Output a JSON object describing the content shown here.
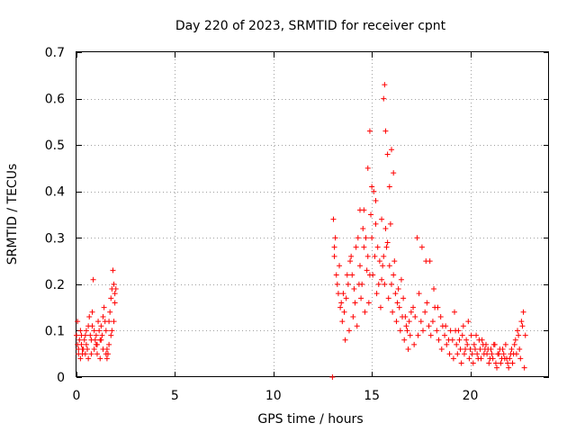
{
  "chart_data": {
    "type": "scatter",
    "title": "Day 220 of 2023, SRMTID for receiver cpnt",
    "xlabel": "GPS time / hours",
    "ylabel": "SRMTID / TECUs",
    "xlim": [
      0,
      24
    ],
    "ylim": [
      0,
      0.7
    ],
    "xticks": [
      0,
      5,
      10,
      15,
      20
    ],
    "xtick_labels": [
      "0",
      "5",
      "10",
      "15",
      "20"
    ],
    "yticks": [
      0,
      0.1,
      0.2,
      0.3,
      0.4,
      0.5,
      0.6,
      0.7
    ],
    "ytick_labels": [
      "0",
      "0.1",
      "0.2",
      "0.3",
      "0.4",
      "0.5",
      "0.6",
      "0.7"
    ],
    "grid": true,
    "marker": "+",
    "color": "#ff0000",
    "series": [
      {
        "name": "SRMTID",
        "x": [
          0.0,
          0.05,
          0.1,
          0.15,
          0.2,
          0.25,
          0.3,
          0.35,
          0.4,
          0.45,
          0.5,
          0.55,
          0.6,
          0.65,
          0.7,
          0.75,
          0.8,
          0.85,
          0.9,
          0.95,
          1.0,
          1.05,
          1.1,
          1.15,
          1.2,
          1.25,
          1.3,
          1.35,
          1.4,
          1.45,
          1.5,
          1.55,
          1.6,
          1.65,
          1.7,
          1.75,
          1.8,
          1.85,
          1.9,
          1.95,
          2.0,
          0.1,
          0.2,
          0.3,
          0.45,
          0.6,
          0.75,
          0.9,
          1.05,
          1.2,
          1.35,
          1.5,
          1.65,
          1.8,
          1.95,
          0.05,
          0.25,
          0.5,
          0.8,
          1.0,
          1.25,
          1.55,
          1.75,
          1.9,
          13.0,
          13.05,
          13.1,
          13.2,
          13.3,
          13.4,
          13.5,
          13.6,
          13.7,
          13.8,
          13.9,
          14.0,
          14.1,
          14.2,
          14.3,
          14.4,
          14.5,
          14.6,
          14.7,
          14.8,
          14.9,
          15.0,
          15.1,
          15.2,
          15.3,
          15.4,
          15.5,
          15.6,
          15.7,
          15.8,
          15.9,
          16.0,
          16.1,
          16.2,
          16.3,
          16.4,
          16.5,
          16.6,
          16.7,
          16.8,
          16.9,
          17.0,
          13.1,
          13.25,
          13.45,
          13.65,
          13.85,
          14.05,
          14.25,
          14.45,
          14.65,
          14.85,
          15.05,
          15.25,
          15.45,
          15.65,
          15.85,
          16.05,
          16.25,
          16.45,
          16.65,
          16.85,
          13.15,
          13.35,
          13.55,
          13.75,
          13.95,
          14.15,
          14.35,
          14.55,
          14.75,
          14.95,
          15.15,
          15.35,
          15.55,
          15.75,
          15.95,
          16.15,
          16.35,
          16.55,
          16.75,
          16.95,
          14.4,
          14.6,
          14.8,
          14.9,
          15.0,
          15.2,
          15.5,
          15.6,
          15.65,
          15.7,
          15.8,
          15.9,
          16.0,
          16.1,
          17.1,
          17.2,
          17.3,
          17.4,
          17.5,
          17.6,
          17.7,
          17.8,
          17.9,
          18.0,
          18.1,
          18.2,
          18.3,
          18.4,
          18.5,
          18.6,
          18.7,
          18.8,
          18.9,
          19.0,
          17.15,
          17.35,
          17.55,
          17.75,
          17.95,
          18.15,
          18.35,
          18.55,
          18.75,
          18.95,
          19.1,
          19.2,
          19.3,
          19.4,
          19.5,
          19.6,
          19.7,
          19.8,
          19.9,
          20.0,
          20.1,
          20.2,
          20.3,
          20.4,
          20.5,
          20.6,
          20.7,
          20.8,
          20.9,
          21.0,
          21.1,
          21.2,
          21.3,
          21.4,
          21.5,
          21.6,
          21.7,
          21.8,
          21.9,
          22.0,
          22.1,
          22.2,
          22.3,
          22.4,
          22.5,
          22.6,
          22.7,
          22.8,
          19.15,
          19.35,
          19.55,
          19.75,
          19.95,
          20.15,
          20.35,
          20.55,
          20.75,
          20.95,
          21.15,
          21.35,
          21.55,
          21.75,
          21.95,
          22.15,
          22.35,
          22.55,
          22.75,
          19.25,
          19.45,
          19.65,
          19.85,
          20.05,
          20.25,
          20.45,
          20.65,
          20.85,
          21.05,
          21.25,
          21.45,
          21.65,
          21.85,
          22.05,
          22.25,
          22.45,
          22.65
        ],
        "y": [
          0.09,
          0.07,
          0.06,
          0.08,
          0.1,
          0.07,
          0.05,
          0.06,
          0.08,
          0.09,
          0.07,
          0.06,
          0.11,
          0.13,
          0.09,
          0.08,
          0.14,
          0.21,
          0.1,
          0.08,
          0.09,
          0.07,
          0.12,
          0.1,
          0.08,
          0.11,
          0.09,
          0.13,
          0.15,
          0.12,
          0.1,
          0.06,
          0.05,
          0.12,
          0.14,
          0.17,
          0.19,
          0.23,
          0.2,
          0.18,
          0.19,
          0.05,
          0.04,
          0.06,
          0.05,
          0.04,
          0.05,
          0.06,
          0.05,
          0.04,
          0.06,
          0.05,
          0.07,
          0.1,
          0.16,
          0.12,
          0.09,
          0.1,
          0.11,
          0.07,
          0.08,
          0.04,
          0.09,
          0.12,
          0.0,
          0.34,
          0.28,
          0.22,
          0.18,
          0.15,
          0.12,
          0.14,
          0.17,
          0.2,
          0.25,
          0.22,
          0.19,
          0.28,
          0.3,
          0.24,
          0.2,
          0.36,
          0.3,
          0.26,
          0.22,
          0.3,
          0.4,
          0.33,
          0.28,
          0.25,
          0.21,
          0.26,
          0.32,
          0.29,
          0.24,
          0.2,
          0.22,
          0.18,
          0.16,
          0.15,
          0.21,
          0.17,
          0.13,
          0.1,
          0.12,
          0.14,
          0.26,
          0.2,
          0.16,
          0.08,
          0.1,
          0.13,
          0.11,
          0.17,
          0.14,
          0.16,
          0.22,
          0.18,
          0.15,
          0.2,
          0.17,
          0.14,
          0.12,
          0.1,
          0.08,
          0.06,
          0.3,
          0.24,
          0.18,
          0.22,
          0.26,
          0.16,
          0.2,
          0.32,
          0.23,
          0.35,
          0.26,
          0.2,
          0.24,
          0.28,
          0.33,
          0.25,
          0.19,
          0.13,
          0.11,
          0.09,
          0.36,
          0.28,
          0.45,
          0.53,
          0.41,
          0.38,
          0.34,
          0.6,
          0.63,
          0.53,
          0.48,
          0.41,
          0.49,
          0.44,
          0.15,
          0.13,
          0.3,
          0.18,
          0.12,
          0.1,
          0.14,
          0.16,
          0.11,
          0.09,
          0.12,
          0.15,
          0.1,
          0.08,
          0.13,
          0.11,
          0.09,
          0.07,
          0.08,
          0.1,
          0.07,
          0.09,
          0.28,
          0.25,
          0.25,
          0.19,
          0.15,
          0.06,
          0.11,
          0.05,
          0.08,
          0.14,
          0.07,
          0.1,
          0.06,
          0.09,
          0.05,
          0.08,
          0.12,
          0.06,
          0.05,
          0.07,
          0.09,
          0.04,
          0.06,
          0.08,
          0.05,
          0.07,
          0.06,
          0.04,
          0.05,
          0.07,
          0.03,
          0.05,
          0.06,
          0.04,
          0.05,
          0.07,
          0.03,
          0.04,
          0.06,
          0.05,
          0.08,
          0.1,
          0.06,
          0.12,
          0.14,
          0.09,
          0.04,
          0.05,
          0.03,
          0.06,
          0.04,
          0.03,
          0.05,
          0.04,
          0.06,
          0.03,
          0.04,
          0.02,
          0.03,
          0.04,
          0.02,
          0.03,
          0.05,
          0.04,
          0.02,
          0.1,
          0.08,
          0.11,
          0.07,
          0.09,
          0.06,
          0.08,
          0.07,
          0.05,
          0.06,
          0.07,
          0.05,
          0.06,
          0.04,
          0.05,
          0.07,
          0.09,
          0.11
        ]
      }
    ]
  }
}
